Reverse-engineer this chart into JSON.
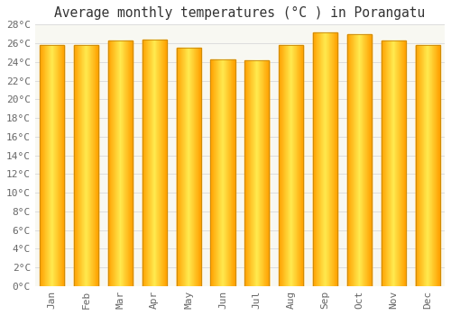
{
  "title": "Average monthly temperatures (°C ) in Porangatu",
  "months": [
    "Jan",
    "Feb",
    "Mar",
    "Apr",
    "May",
    "Jun",
    "Jul",
    "Aug",
    "Sep",
    "Oct",
    "Nov",
    "Dec"
  ],
  "values": [
    25.8,
    25.8,
    26.3,
    26.4,
    25.5,
    24.3,
    24.2,
    25.8,
    27.2,
    27.0,
    26.3,
    25.8
  ],
  "bar_color_center": "#FFD966",
  "bar_color_edge": "#F0A010",
  "ylim": [
    0,
    28
  ],
  "yticks": [
    0,
    2,
    4,
    6,
    8,
    10,
    12,
    14,
    16,
    18,
    20,
    22,
    24,
    26,
    28
  ],
  "background_color": "#FFFFFF",
  "plot_bg_color": "#F8F8F2",
  "grid_color": "#DDDDDD",
  "title_fontsize": 10.5,
  "tick_fontsize": 8,
  "bar_width": 0.72
}
